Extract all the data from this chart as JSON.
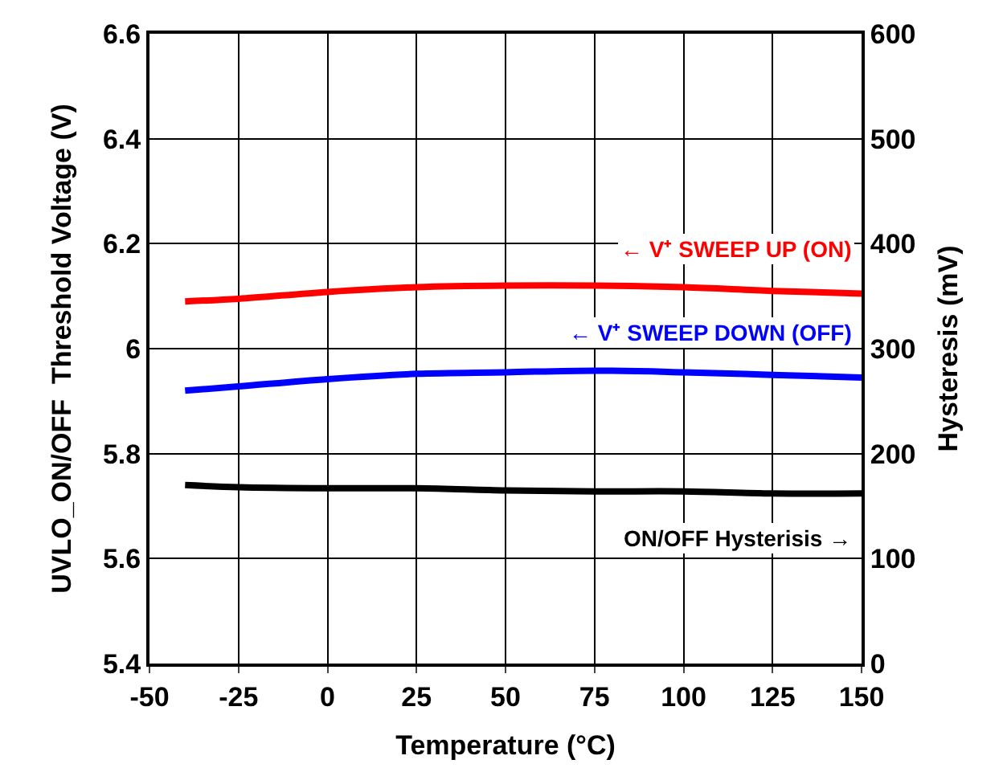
{
  "chart_data": {
    "type": "line",
    "xlabel": "Temperature (°C)",
    "ylabel": "UVLO_ON/OFF  Threshold Voltage (V)",
    "y2label": "Hysteresis (mV)",
    "x": [
      -40,
      -25,
      0,
      25,
      50,
      75,
      100,
      125,
      150
    ],
    "series": [
      {
        "name": "← V⁺ SWEEP UP (ON)",
        "color": "#ff0000",
        "values": [
          6.09,
          6.095,
          6.108,
          6.117,
          6.12,
          6.12,
          6.117,
          6.11,
          6.105
        ]
      },
      {
        "name": "← V⁺ SWEEP DOWN (OFF)",
        "color": "#0000ff",
        "values": [
          5.92,
          5.928,
          5.942,
          5.952,
          5.955,
          5.958,
          5.955,
          5.95,
          5.945
        ]
      },
      {
        "name": "ON/OFF Hysterisis →",
        "color": "#000000",
        "axis": "y2",
        "values": [
          170,
          168,
          167,
          167,
          165,
          164,
          164,
          162,
          162
        ]
      }
    ],
    "xlim": [
      -50,
      150
    ],
    "xticks": [
      -50,
      -25,
      0,
      25,
      50,
      75,
      100,
      125,
      150
    ],
    "ylim": [
      5.4,
      6.6
    ],
    "yticks": [
      5.4,
      5.6,
      5.8,
      6,
      6.2,
      6.4,
      6.6
    ],
    "y2lim": [
      0,
      600
    ],
    "y2ticks": [
      0,
      100,
      200,
      300,
      400,
      500,
      600
    ],
    "grid": true,
    "marker": "none",
    "line_style": "solid"
  }
}
